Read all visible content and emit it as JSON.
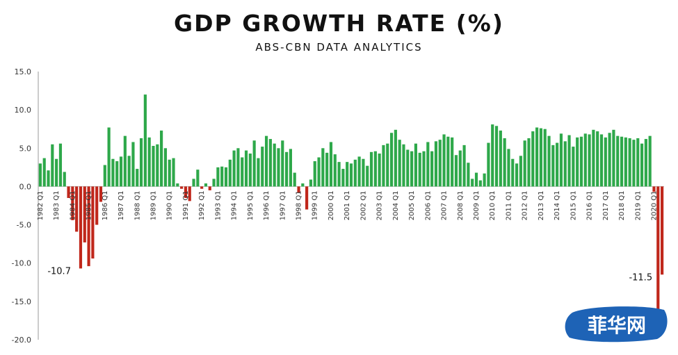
{
  "chart_data": {
    "type": "bar",
    "title": "GDP GROWTH RATE (%)",
    "subtitle": "ABS-CBN DATA ANALYTICS",
    "xlabel": "",
    "ylabel": "",
    "ylim": [
      -20,
      15
    ],
    "yticks": [
      "15.0",
      "10.0",
      "5.0",
      "0.0",
      "-5.0",
      "-10.0",
      "-15.0",
      "-20.0"
    ],
    "grid": false,
    "legend": "none",
    "positive_color": "#2ea84a",
    "negative_color": "#c0271b",
    "first_quarter": "1982 Q1",
    "quarter_labels": [
      "1982 Q1",
      "1983 Q1",
      "1984 Q1",
      "1985 Q1",
      "1986 Q1",
      "1987 Q1",
      "1988 Q1",
      "1989 Q1",
      "1990 Q1",
      "1991 Q1",
      "1992 Q1",
      "1993 Q1",
      "1994 Q1",
      "1995 Q1",
      "1996 Q1",
      "1997 Q1",
      "1998 Q1",
      "1999 Q1",
      "2000 Q1",
      "2001 Q1",
      "2002 Q1",
      "2003 Q1",
      "2004 Q1",
      "2005 Q1",
      "2006 Q1",
      "2007 Q1",
      "2008 Q1",
      "2009 Q1",
      "2010 Q1",
      "2011 Q1",
      "2012 Q1",
      "2013 Q1",
      "2014 Q1",
      "2015 Q1",
      "2016 Q1",
      "2017 Q1",
      "2018 Q1",
      "2019 Q1",
      "2020 Q1"
    ],
    "values": [
      3.0,
      3.7,
      2.1,
      5.5,
      3.6,
      5.6,
      1.9,
      -1.5,
      -4.4,
      -5.9,
      -10.7,
      -7.3,
      -10.4,
      -9.4,
      -5.0,
      -2.0,
      2.8,
      7.7,
      3.6,
      3.3,
      3.9,
      6.6,
      4.0,
      5.8,
      2.3,
      6.3,
      12.0,
      6.4,
      5.3,
      5.5,
      7.3,
      5.0,
      3.5,
      3.7,
      0.4,
      -0.3,
      -1.5,
      -1.9,
      1.0,
      2.2,
      -0.3,
      0.4,
      -0.5,
      1.0,
      2.5,
      2.6,
      2.5,
      3.5,
      4.7,
      5.0,
      3.8,
      4.7,
      4.3,
      6.0,
      3.7,
      5.2,
      6.6,
      6.2,
      5.6,
      5.0,
      6.0,
      4.5,
      4.9,
      1.8,
      -0.8,
      0.4,
      -3.0,
      0.9,
      3.3,
      3.8,
      5.0,
      4.4,
      5.8,
      4.2,
      3.2,
      2.3,
      3.2,
      3.0,
      3.5,
      3.9,
      3.6,
      2.7,
      4.5,
      4.6,
      4.3,
      5.4,
      5.6,
      7.0,
      7.4,
      6.1,
      5.5,
      4.8,
      4.6,
      5.6,
      4.4,
      4.6,
      5.8,
      4.6,
      5.9,
      6.1,
      6.8,
      6.5,
      6.4,
      4.1,
      4.7,
      5.4,
      3.1,
      1.0,
      1.8,
      0.8,
      1.7,
      5.7,
      8.1,
      7.9,
      7.3,
      6.3,
      4.9,
      3.6,
      3.0,
      4.0,
      6.0,
      6.3,
      7.2,
      7.7,
      7.6,
      7.5,
      6.6,
      5.4,
      5.7,
      6.9,
      5.9,
      6.7,
      5.2,
      6.4,
      6.5,
      6.9,
      6.8,
      7.4,
      7.2,
      6.8,
      6.4,
      7.0,
      7.4,
      6.6,
      6.5,
      6.4,
      6.3,
      6.1,
      6.3,
      5.6,
      6.2,
      6.6,
      -0.7,
      -16.0,
      -11.5
    ],
    "annotations": [
      {
        "text": "-10.7",
        "index": 10
      },
      {
        "text": "-11.5",
        "index": 154
      }
    ]
  },
  "watermark": {
    "text": "菲华网"
  }
}
